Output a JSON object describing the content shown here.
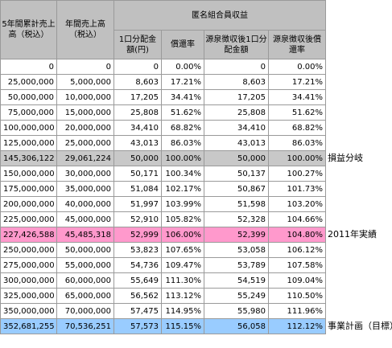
{
  "headers": {
    "cum5": "5年間累計売上高（税込）",
    "annual": "年間売上高（税込）",
    "group": "匿名組合員収益",
    "sub": [
      "1口分配金額(円)",
      "償還率",
      "源泉徴収後1口分配金額",
      "源泉徴収後償還率"
    ]
  },
  "rows": [
    {
      "c1": "0",
      "c2": "0",
      "c3": "0",
      "c4": "0.00%",
      "c5": "0",
      "c6": "0.00%"
    },
    {
      "c1": "25,000,000",
      "c2": "5,000,000",
      "c3": "8,603",
      "c4": "17.21%",
      "c5": "8,603",
      "c6": "17.21%"
    },
    {
      "c1": "50,000,000",
      "c2": "10,000,000",
      "c3": "17,205",
      "c4": "34.41%",
      "c5": "17,205",
      "c6": "34.41%"
    },
    {
      "c1": "75,000,000",
      "c2": "15,000,000",
      "c3": "25,808",
      "c4": "51.62%",
      "c5": "25,808",
      "c6": "51.62%"
    },
    {
      "c1": "100,000,000",
      "c2": "20,000,000",
      "c3": "34,410",
      "c4": "68.82%",
      "c5": "34,410",
      "c6": "68.82%"
    },
    {
      "c1": "125,000,000",
      "c2": "25,000,000",
      "c3": "43,013",
      "c4": "86.03%",
      "c5": "43,013",
      "c6": "86.03%"
    },
    {
      "c1": "145,306,122",
      "c2": "29,061,224",
      "c3": "50,000",
      "c4": "100.00%",
      "c5": "50,000",
      "c6": "100.00%",
      "style": "gray",
      "note": "損益分岐"
    },
    {
      "c1": "150,000,000",
      "c2": "30,000,000",
      "c3": "50,171",
      "c4": "100.34%",
      "c5": "50,137",
      "c6": "100.27%"
    },
    {
      "c1": "175,000,000",
      "c2": "35,000,000",
      "c3": "51,084",
      "c4": "102.17%",
      "c5": "50,867",
      "c6": "101.73%"
    },
    {
      "c1": "200,000,000",
      "c2": "40,000,000",
      "c3": "51,997",
      "c4": "103.99%",
      "c5": "51,598",
      "c6": "103.20%"
    },
    {
      "c1": "225,000,000",
      "c2": "45,000,000",
      "c3": "52,910",
      "c4": "105.82%",
      "c5": "52,328",
      "c6": "104.66%"
    },
    {
      "c1": "227,426,588",
      "c2": "45,485,318",
      "c3": "52,999",
      "c4": "106.00%",
      "c5": "52,399",
      "c6": "104.80%",
      "style": "pink",
      "note": "2011年実績"
    },
    {
      "c1": "250,000,000",
      "c2": "50,000,000",
      "c3": "53,823",
      "c4": "107.65%",
      "c5": "53,058",
      "c6": "106.12%"
    },
    {
      "c1": "275,000,000",
      "c2": "55,000,000",
      "c3": "54,736",
      "c4": "109.47%",
      "c5": "53,789",
      "c6": "107.58%"
    },
    {
      "c1": "300,000,000",
      "c2": "60,000,000",
      "c3": "55,649",
      "c4": "111.30%",
      "c5": "54,519",
      "c6": "109.04%"
    },
    {
      "c1": "325,000,000",
      "c2": "65,000,000",
      "c3": "56,562",
      "c4": "113.12%",
      "c5": "55,249",
      "c6": "110.50%"
    },
    {
      "c1": "350,000,000",
      "c2": "70,000,000",
      "c3": "57,475",
      "c4": "114.95%",
      "c5": "55,980",
      "c6": "111.96%"
    },
    {
      "c1": "352,681,255",
      "c2": "70,536,251",
      "c3": "57,573",
      "c4": "115.15%",
      "c5": "56,058",
      "c6": "112.12%",
      "style": "blue",
      "note": "事業計画（目標）"
    }
  ]
}
